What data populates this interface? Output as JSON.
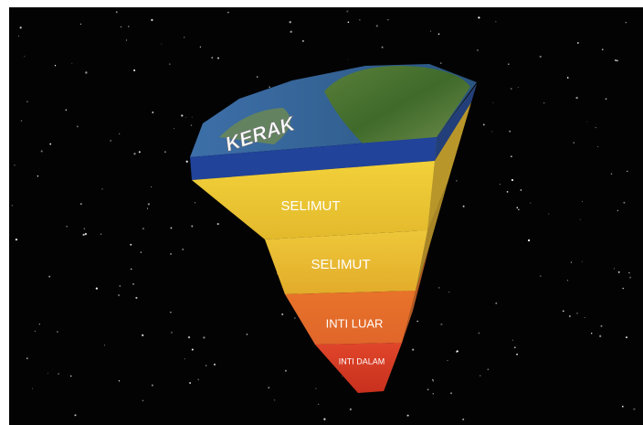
{
  "layers": [
    {
      "label": "KERAK"
    },
    {
      "label": "SELIMUT"
    },
    {
      "label": "SELIMUT"
    },
    {
      "label": "INTI LUAR"
    },
    {
      "label": "INTI DALAM"
    }
  ]
}
